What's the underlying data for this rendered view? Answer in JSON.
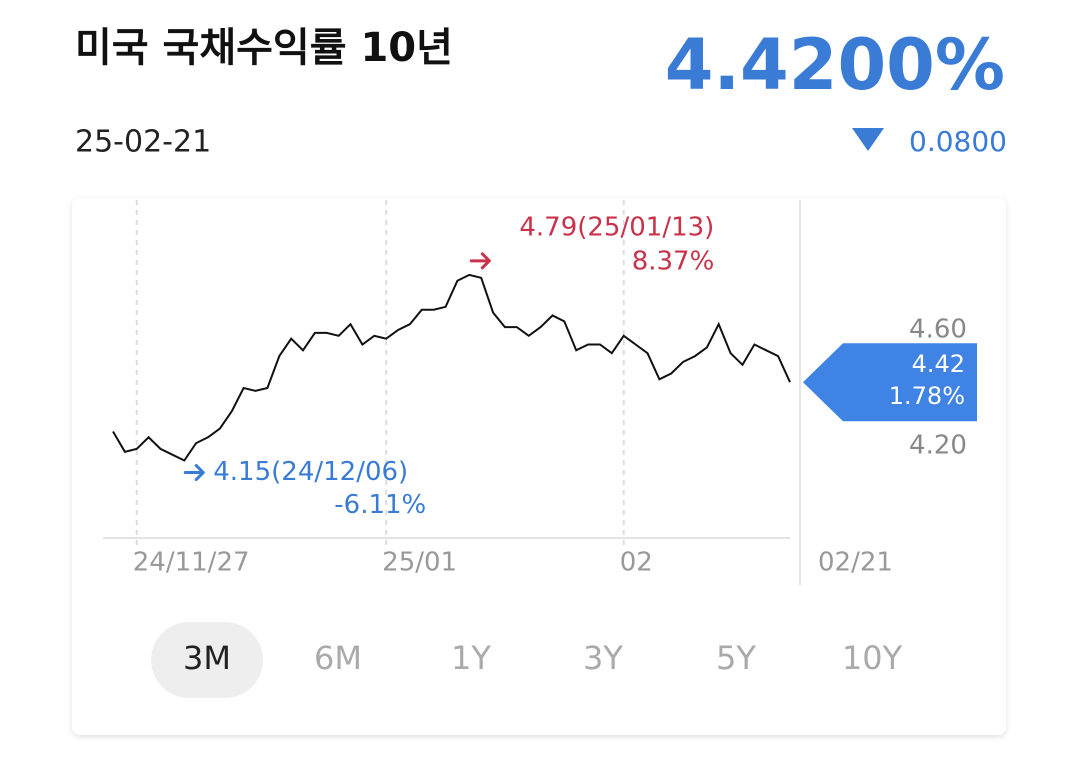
{
  "header": {
    "title": "미국 국채수익률 10년",
    "price": "4.4200%",
    "date": "25-02-21",
    "change": "0.0800"
  },
  "chart_data": {
    "type": "line",
    "color": "#111111",
    "categories": [
      null,
      null,
      "24/11/27",
      null,
      null,
      null,
      null,
      null,
      null,
      null,
      null,
      null,
      null,
      null,
      null,
      null,
      null,
      null,
      null,
      null,
      null,
      null,
      null,
      "25/01",
      null,
      null,
      null,
      null,
      null,
      null,
      null,
      null,
      null,
      null,
      null,
      null,
      null,
      null,
      null,
      null,
      null,
      null,
      null,
      "02",
      null,
      null,
      null,
      null,
      null,
      null,
      null,
      null,
      null,
      null,
      null,
      null,
      null,
      "02/21"
    ],
    "values": [
      4.25,
      4.18,
      4.19,
      4.23,
      4.19,
      4.17,
      4.15,
      4.21,
      4.23,
      4.26,
      4.32,
      4.4,
      4.39,
      4.4,
      4.51,
      4.57,
      4.53,
      4.59,
      4.59,
      4.58,
      4.62,
      4.55,
      4.58,
      4.57,
      4.6,
      4.62,
      4.67,
      4.67,
      4.68,
      4.77,
      4.79,
      4.78,
      4.66,
      4.61,
      4.61,
      4.58,
      4.61,
      4.65,
      4.63,
      4.53,
      4.55,
      4.55,
      4.52,
      4.58,
      4.55,
      4.52,
      4.43,
      4.45,
      4.49,
      4.51,
      4.54,
      4.62,
      4.52,
      4.48,
      4.55,
      4.53,
      4.51,
      4.42
    ],
    "ylim": [
      3.883,
      5.048
    ],
    "yticks": [
      {
        "value": 4.6,
        "label": "4.60"
      },
      {
        "value": 4.2,
        "label": "4.20"
      }
    ],
    "high": {
      "label": "4.79(25/01/13)",
      "change": "8.37%",
      "color": "#c8334a"
    },
    "low": {
      "label": "4.15(24/12/06)",
      "change": "-6.11%",
      "color": "#3a7bd5"
    },
    "current": {
      "label": "4.42",
      "change": "1.78%",
      "color": "#3f83e4"
    }
  },
  "periods": [
    "3M",
    "6M",
    "1Y",
    "3Y",
    "5Y",
    "10Y"
  ],
  "selected_period": 0
}
